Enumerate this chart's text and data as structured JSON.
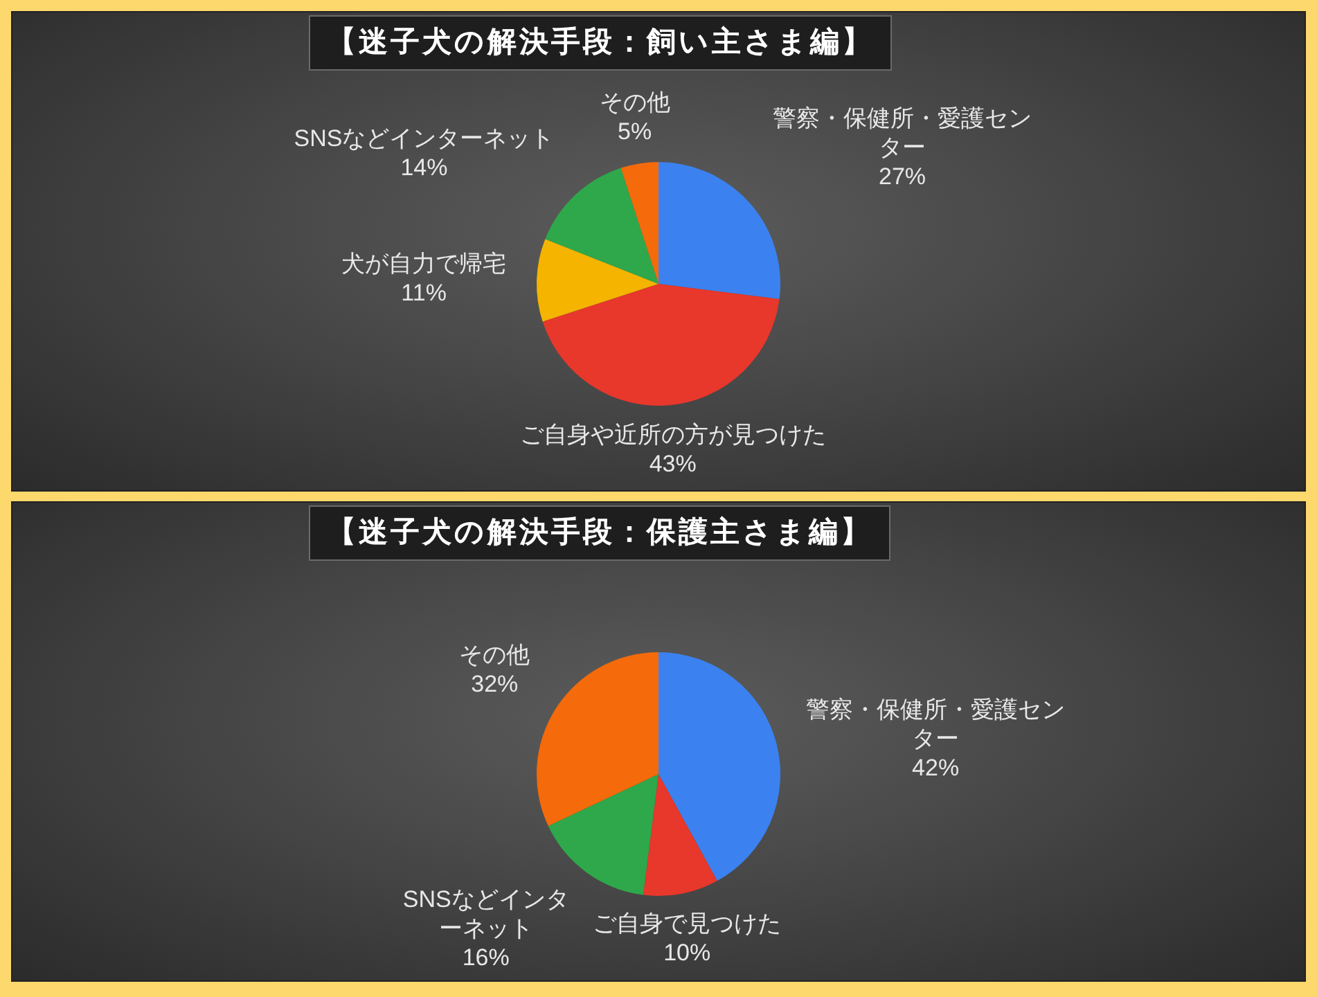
{
  "chart_data": [
    {
      "type": "pie",
      "title": "【迷子犬の解決手段：飼い主さま編】",
      "categories": [
        "警察・保健所・愛護センター",
        "ご自身や近所の方が見つけた",
        "犬が自力で帰宅",
        "SNSなどインターネット",
        "その他"
      ],
      "values": [
        27,
        43,
        11,
        14,
        5
      ],
      "colors": [
        "#3b82f0",
        "#e8372b",
        "#f4b400",
        "#2ea84a",
        "#f56a0a"
      ],
      "value_labels": [
        "27%",
        "43%",
        "11%",
        "14%",
        "5%"
      ],
      "legend": false
    },
    {
      "type": "pie",
      "title": "【迷子犬の解決手段：保護主さま編】",
      "categories": [
        "警察・保健所・愛護センター",
        "ご自身で見つけた",
        "SNSなどインターネット",
        "その他"
      ],
      "values": [
        42,
        10,
        16,
        32
      ],
      "colors": [
        "#3b82f0",
        "#e8372b",
        "#2ea84a",
        "#f56a0a"
      ],
      "value_labels": [
        "42%",
        "10%",
        "16%",
        "32%"
      ],
      "legend": false
    }
  ]
}
